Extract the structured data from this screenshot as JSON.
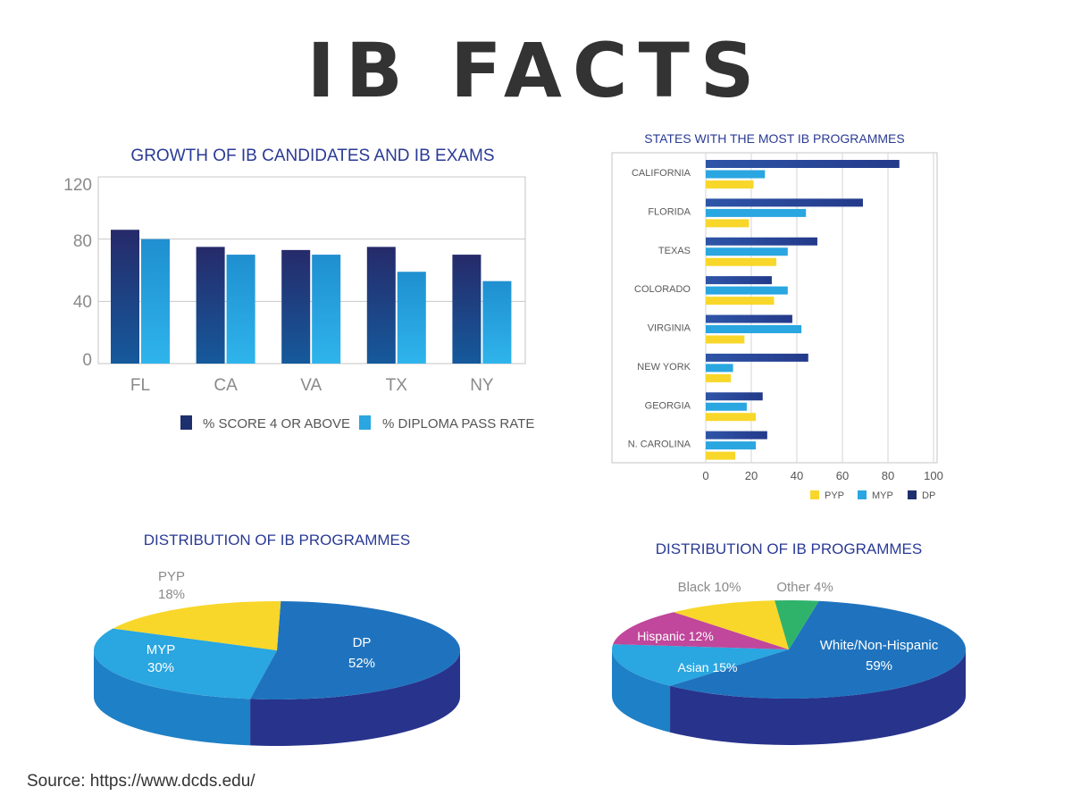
{
  "page": {
    "title": "IB FACTS",
    "source": "Source: https://www.dcds.edu/"
  },
  "colors": {
    "navy": "#1e2f6e",
    "sky": "#2aa6e0",
    "yellow": "#f8d72a",
    "dp_blue": "#1f73be",
    "dp_side": "#28338c",
    "myp_light": "#2aa6e0",
    "hispanic": "#c0479b",
    "other": "#2fb36b"
  },
  "chart_data": [
    {
      "type": "bar",
      "title": "GROWTH OF IB CANDIDATES AND IB EXAMS",
      "categories": [
        "FL",
        "CA",
        "VA",
        "TX",
        "NY"
      ],
      "series": [
        {
          "name": "% SCORE 4 OR ABOVE",
          "values": [
            86,
            75,
            73,
            75,
            70
          ]
        },
        {
          "name": "% DIPLOMA PASS RATE",
          "values": [
            80,
            70,
            70,
            59,
            53
          ]
        }
      ],
      "yticks": [
        "120",
        "80",
        "40",
        "0"
      ],
      "ylim": [
        0,
        120
      ],
      "legend": "bottom"
    },
    {
      "type": "bar",
      "orientation": "horizontal",
      "title": "STATES WITH THE MOST IB PROGRAMMES",
      "categories": [
        "CALIFORNIA",
        "FLORIDA",
        "TEXAS",
        "COLORADO",
        "VIRGINIA",
        "NEW YORK",
        "GEORGIA",
        "N. CAROLINA"
      ],
      "series": [
        {
          "name": "DP",
          "values": [
            85,
            69,
            49,
            29,
            38,
            45,
            25,
            27
          ]
        },
        {
          "name": "MYP",
          "values": [
            26,
            44,
            36,
            36,
            42,
            12,
            18,
            22
          ]
        },
        {
          "name": "PYP",
          "values": [
            21,
            19,
            31,
            30,
            17,
            11,
            22,
            13
          ]
        }
      ],
      "xticks": [
        "0",
        "20",
        "40",
        "60",
        "80",
        "100"
      ],
      "xlim": [
        0,
        100
      ],
      "legend_order": [
        "PYP",
        "MYP",
        "DP"
      ],
      "legend": "bottom-right"
    },
    {
      "type": "pie",
      "title": "DISTRIBUTION OF IB PROGRAMMES",
      "slices": [
        {
          "name": "DP",
          "value": 52,
          "label": "DP",
          "pct": "52%"
        },
        {
          "name": "MYP",
          "value": 30,
          "label": "MYP",
          "pct": "30%"
        },
        {
          "name": "PYP",
          "value": 18,
          "label": "PYP",
          "pct": "18%"
        }
      ]
    },
    {
      "type": "pie",
      "title": "DISTRIBUTION OF IB PROGRAMMES",
      "slices": [
        {
          "name": "White/Non-Hispanic",
          "value": 59,
          "label": "White/Non-Hispanic",
          "pct": "59%"
        },
        {
          "name": "Asian",
          "value": 15,
          "label": "Asian 15%"
        },
        {
          "name": "Hispanic",
          "value": 12,
          "label": "Hispanic 12%"
        },
        {
          "name": "Black",
          "value": 10,
          "label": "Black 10%"
        },
        {
          "name": "Other",
          "value": 4,
          "label": "Other 4%"
        }
      ]
    }
  ]
}
